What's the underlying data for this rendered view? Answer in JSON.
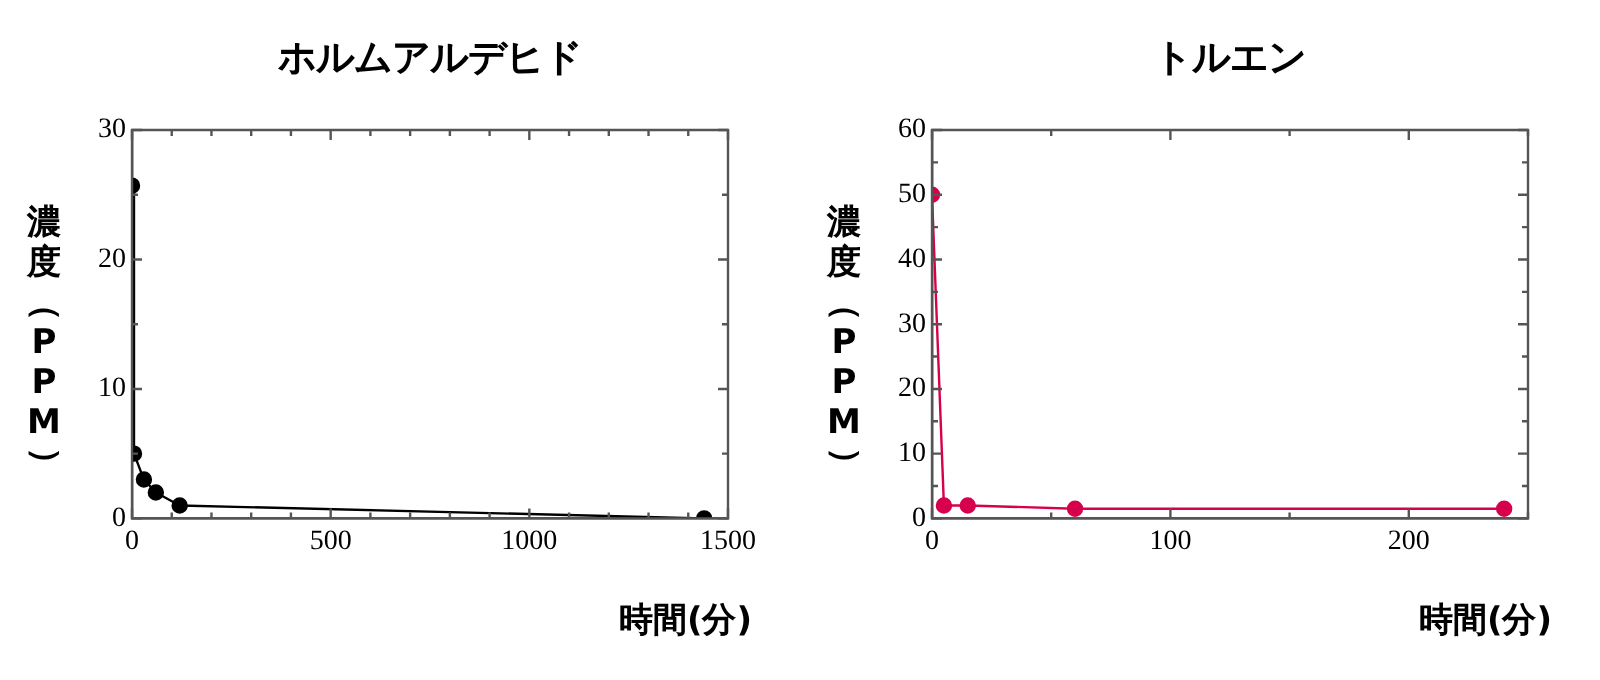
{
  "chart_data": [
    {
      "type": "line",
      "title": "ホルムアルデヒド",
      "xlabel": "時間(分)",
      "ylabel": "濃度（PPM）",
      "marker": "circle",
      "line_style": "solid",
      "grid": false,
      "legend": false,
      "x": [
        0,
        5,
        30,
        60,
        120,
        1440
      ],
      "series": [
        {
          "color": "#000000",
          "values": [
            25.7,
            5,
            3,
            2,
            1,
            0
          ]
        }
      ],
      "xlim": [
        0,
        1500
      ],
      "xticks": [
        0,
        {
          "value": 100,
          "label": null
        },
        {
          "value": 200,
          "label": null
        },
        {
          "value": 300,
          "label": null
        },
        {
          "value": 400,
          "label": null
        },
        500,
        {
          "value": 600,
          "label": null
        },
        {
          "value": 700,
          "label": null
        },
        {
          "value": 800,
          "label": null
        },
        {
          "value": 900,
          "label": null
        },
        1000,
        {
          "value": 1100,
          "label": null
        },
        {
          "value": 1200,
          "label": null
        },
        {
          "value": 1300,
          "label": null
        },
        {
          "value": 1400,
          "label": null
        },
        1500
      ],
      "ylim": [
        0,
        30
      ],
      "yticks": [
        0,
        {
          "value": 5,
          "label": null
        },
        10,
        {
          "value": 15,
          "label": null
        },
        20,
        {
          "value": 25,
          "label": null
        },
        30
      ]
    },
    {
      "type": "line",
      "title": "トルエン",
      "xlabel": "時間(分)",
      "ylabel": "濃度（PPM）",
      "marker": "circle",
      "line_style": "solid",
      "grid": false,
      "legend": false,
      "x": [
        0,
        5,
        15,
        60,
        240
      ],
      "series": [
        {
          "color": "#d6004c",
          "values": [
            50,
            2,
            2,
            1.5,
            1.5
          ]
        }
      ],
      "xlim": [
        0,
        250
      ],
      "xticks": [
        0,
        {
          "value": 50,
          "label": null
        },
        100,
        {
          "value": 150,
          "label": null
        },
        200,
        {
          "value": 250,
          "label": null
        }
      ],
      "ylim": [
        0,
        60
      ],
      "yticks": [
        0,
        {
          "value": 5,
          "label": null
        },
        10,
        {
          "value": 15,
          "label": null
        },
        20,
        {
          "value": 25,
          "label": null
        },
        30,
        {
          "value": 35,
          "label": null
        },
        40,
        {
          "value": 45,
          "label": null
        },
        50,
        {
          "value": 55,
          "label": null
        },
        60
      ]
    }
  ]
}
